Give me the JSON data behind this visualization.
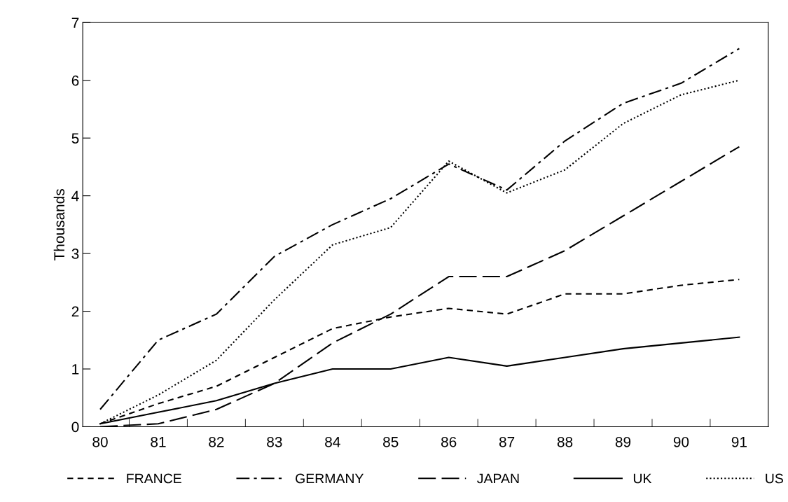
{
  "chart_data": {
    "type": "line",
    "ylabel": "Thousands",
    "categories": [
      "80",
      "81",
      "82",
      "83",
      "84",
      "85",
      "86",
      "87",
      "88",
      "89",
      "90",
      "91"
    ],
    "series": [
      {
        "name": "FRANCE",
        "color": "#000000",
        "line_style": "dashed",
        "values": [
          0.05,
          0.4,
          0.7,
          1.2,
          1.7,
          1.9,
          2.05,
          1.95,
          2.3,
          2.3,
          2.45,
          2.55
        ]
      },
      {
        "name": "GERMANY",
        "color": "#000000",
        "line_style": "dashdot",
        "values": [
          0.3,
          1.5,
          1.95,
          2.95,
          3.5,
          3.95,
          4.55,
          4.1,
          4.95,
          5.6,
          5.95,
          6.55
        ]
      },
      {
        "name": "JAPAN",
        "color": "#000000",
        "line_style": "longdash",
        "values": [
          0.0,
          0.05,
          0.3,
          0.75,
          1.45,
          1.95,
          2.6,
          2.6,
          3.05,
          3.65,
          4.25,
          4.85
        ]
      },
      {
        "name": "UK",
        "color": "#000000",
        "line_style": "solid",
        "values": [
          0.05,
          0.25,
          0.45,
          0.75,
          1.0,
          1.0,
          1.2,
          1.05,
          1.2,
          1.35,
          1.45,
          1.55
        ]
      },
      {
        "name": "US",
        "color": "#000000",
        "line_style": "dotted",
        "values": [
          0.05,
          0.55,
          1.15,
          2.2,
          3.15,
          3.45,
          4.6,
          4.05,
          4.45,
          5.25,
          5.75,
          6.0
        ]
      }
    ],
    "ylim": [
      0,
      7
    ],
    "yticks": [
      0,
      1,
      2,
      3,
      4,
      5,
      6,
      7
    ],
    "grid": false,
    "legend": "bottom",
    "marker": "none"
  }
}
